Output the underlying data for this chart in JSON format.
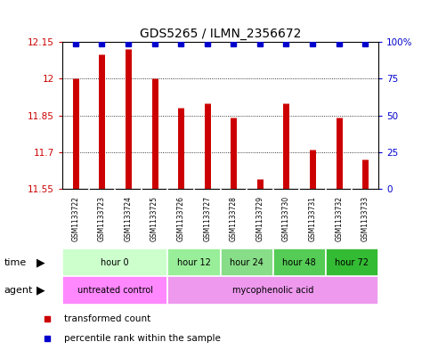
{
  "title": "GDS5265 / ILMN_2356672",
  "samples": [
    "GSM1133722",
    "GSM1133723",
    "GSM1133724",
    "GSM1133725",
    "GSM1133726",
    "GSM1133727",
    "GSM1133728",
    "GSM1133729",
    "GSM1133730",
    "GSM1133731",
    "GSM1133732",
    "GSM1133733"
  ],
  "transformed_counts": [
    12.0,
    12.1,
    12.12,
    12.0,
    11.88,
    11.9,
    11.84,
    11.59,
    11.9,
    11.71,
    11.84,
    11.67
  ],
  "percentile_ranks": [
    100,
    100,
    100,
    100,
    100,
    100,
    100,
    100,
    100,
    100,
    100,
    100
  ],
  "bar_color": "#cc0000",
  "dot_color": "#0000cc",
  "ylim_left": [
    11.55,
    12.15
  ],
  "ylim_right": [
    0,
    100
  ],
  "yticks_left": [
    11.55,
    11.7,
    11.85,
    12.0,
    12.15
  ],
  "yticks_right": [
    0,
    25,
    50,
    75,
    100
  ],
  "ytick_labels_left": [
    "11.55",
    "11.7",
    "11.85",
    "12",
    "12.15"
  ],
  "ytick_labels_right": [
    "0",
    "25",
    "50",
    "75",
    "100%"
  ],
  "time_groups": [
    {
      "label": "hour 0",
      "start": 0,
      "end": 4,
      "color": "#ccffcc"
    },
    {
      "label": "hour 12",
      "start": 4,
      "end": 6,
      "color": "#99ee99"
    },
    {
      "label": "hour 24",
      "start": 6,
      "end": 8,
      "color": "#88dd88"
    },
    {
      "label": "hour 48",
      "start": 8,
      "end": 10,
      "color": "#55cc55"
    },
    {
      "label": "hour 72",
      "start": 10,
      "end": 12,
      "color": "#33bb33"
    }
  ],
  "agent_groups": [
    {
      "label": "untreated control",
      "start": 0,
      "end": 4,
      "color": "#ff88ff"
    },
    {
      "label": "mycophenolic acid",
      "start": 4,
      "end": 12,
      "color": "#ee99ee"
    }
  ],
  "sample_bg": "#cccccc",
  "legend_bar_label": "transformed count",
  "legend_dot_label": "percentile rank within the sample",
  "background_color": "#ffffff",
  "bar_linewidth": 5
}
